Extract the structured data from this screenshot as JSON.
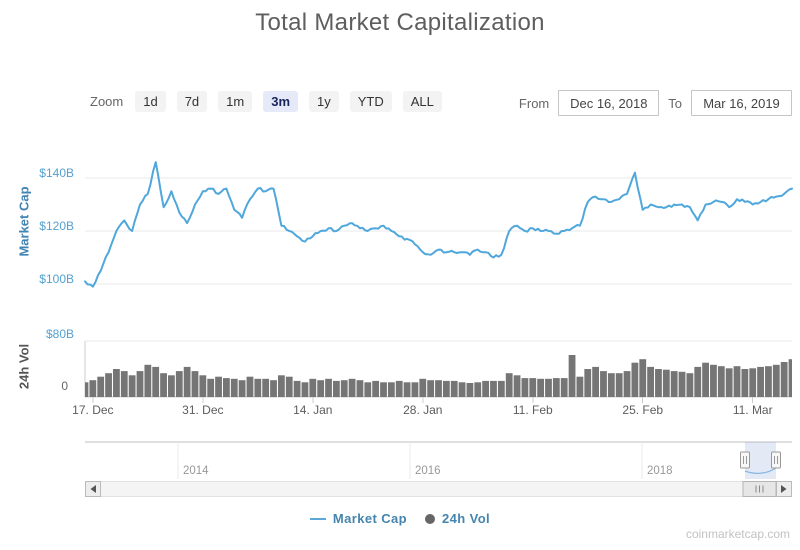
{
  "title": "Total Market Capitalization",
  "watermark": "coinmarketcap.com",
  "toolbar": {
    "zoom_label": "Zoom",
    "buttons": [
      {
        "label": "1d",
        "selected": false
      },
      {
        "label": "7d",
        "selected": false
      },
      {
        "label": "1m",
        "selected": false
      },
      {
        "label": "3m",
        "selected": true
      },
      {
        "label": "1y",
        "selected": false
      },
      {
        "label": "YTD",
        "selected": false
      },
      {
        "label": "ALL",
        "selected": false
      }
    ],
    "from_label": "From",
    "from_value": "Dec 16, 2018",
    "to_label": "To",
    "to_value": "Mar 16, 2019"
  },
  "legend": [
    {
      "icon": "line",
      "label": "Market Cap",
      "color": "#5aa7d8"
    },
    {
      "icon": "circle",
      "label": "24h Vol",
      "color": "#666666"
    }
  ],
  "colors": {
    "market_cap_line": "#4fa7dc",
    "volume_bar": "#757575",
    "axis_label_blue": "#55a1cf",
    "axis_label_gray": "#666666",
    "selected_button_bg": "#e6e9f7",
    "selected_button_text": "#16265c"
  },
  "chart_data": {
    "type": "line",
    "title": "Total Market Capitalization",
    "x_range": [
      "Dec 16, 2018",
      "Mar 16, 2019"
    ],
    "x_tick_labels": [
      "17. Dec",
      "31. Dec",
      "14. Jan",
      "28. Jan",
      "11. Feb",
      "25. Feb",
      "11. Mar"
    ],
    "x_tick_day_index": [
      1,
      15,
      29,
      43,
      57,
      71,
      85
    ],
    "grid": true,
    "legend_position": "bottom",
    "series": [
      {
        "name": "Market Cap",
        "type": "line",
        "unit": "$B",
        "color": "#4fa7dc",
        "axis_ticks": [
          "$100B",
          "$120B",
          "$140B"
        ],
        "axis_tick_values": [
          100,
          120,
          140
        ],
        "ylim": [
          95,
          150
        ],
        "values": [
          101,
          99,
          105,
          112,
          120,
          124,
          120,
          130,
          134,
          146,
          129,
          135,
          127,
          123,
          130,
          135,
          136,
          134,
          136,
          128,
          125,
          132,
          136,
          135,
          136,
          122,
          120,
          118,
          116,
          118,
          120,
          121,
          120,
          122,
          123,
          121,
          120,
          121,
          122,
          120,
          118,
          117,
          115,
          112,
          111,
          113,
          112,
          112,
          112,
          111,
          113,
          112,
          110,
          111,
          120,
          122,
          120,
          121,
          120,
          120,
          119,
          120,
          121,
          122,
          131,
          133,
          132,
          131,
          132,
          134,
          142,
          128,
          130,
          129,
          129,
          130,
          130,
          129,
          124,
          130,
          131,
          131,
          129,
          132,
          131,
          130,
          131,
          132,
          133,
          134,
          136
        ]
      },
      {
        "name": "24h Vol",
        "type": "bar",
        "unit": "$B",
        "color": "#757575",
        "axis_ticks": [
          "0",
          "$80B"
        ],
        "axis_tick_values": [
          0,
          80
        ],
        "ylim": [
          0,
          80
        ],
        "values": [
          21,
          24,
          29,
          34,
          40,
          37,
          31,
          37,
          46,
          43,
          34,
          31,
          37,
          43,
          37,
          31,
          26,
          29,
          27,
          26,
          24,
          29,
          26,
          26,
          24,
          31,
          29,
          23,
          21,
          26,
          24,
          26,
          23,
          24,
          26,
          24,
          21,
          23,
          21,
          21,
          23,
          21,
          21,
          26,
          24,
          24,
          23,
          23,
          21,
          20,
          21,
          23,
          23,
          23,
          34,
          31,
          27,
          27,
          26,
          26,
          27,
          27,
          60,
          29,
          40,
          43,
          37,
          34,
          34,
          37,
          49,
          54,
          43,
          40,
          39,
          37,
          36,
          34,
          43,
          49,
          46,
          44,
          41,
          44,
          40,
          41,
          43,
          44,
          46,
          50,
          54
        ]
      }
    ],
    "navigator": {
      "year_labels": [
        "2014",
        "2016",
        "2018"
      ],
      "selected_range": [
        "Dec 16, 2018",
        "Mar 16, 2019"
      ]
    }
  }
}
